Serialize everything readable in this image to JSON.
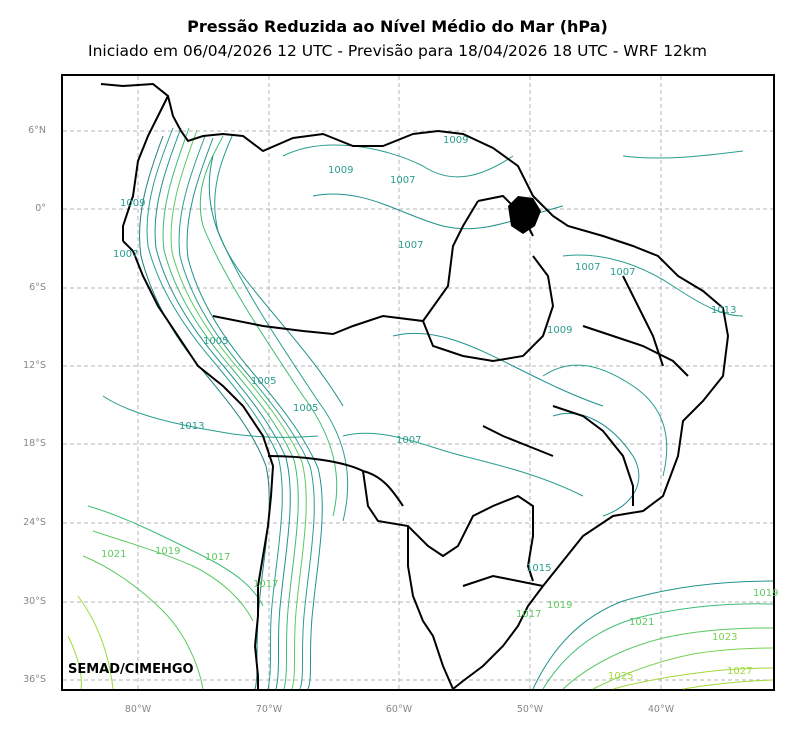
{
  "header": {
    "title": "Pressão Reduzida ao Nível Médio do Mar (hPa)",
    "subtitle": "Iniciado em 06/04/2026 12 UTC - Previsão para 18/04/2026 18 UTC - WRF 12km"
  },
  "credit": "SEMAD/CIMEHGO",
  "axes": {
    "lat_labels": [
      "6°N",
      "0°",
      "6°S",
      "12°S",
      "18°S",
      "24°S",
      "30°S",
      "36°S"
    ],
    "lon_labels": [
      "80°W",
      "70°W",
      "60°W",
      "50°W",
      "40°W"
    ]
  },
  "contour_labels": [
    {
      "text": "1009",
      "color": "#2a9d8f"
    },
    {
      "text": "1009",
      "color": "#2a9d8f"
    },
    {
      "text": "1007",
      "color": "#2a9d8f"
    },
    {
      "text": "1009",
      "color": "#2a9d8f"
    },
    {
      "text": "1007",
      "color": "#2a9d8f"
    },
    {
      "text": "1005",
      "color": "#2a9d8f"
    },
    {
      "text": "1005",
      "color": "#2a9d8f"
    },
    {
      "text": "1005",
      "color": "#2a9d8f"
    },
    {
      "text": "1013",
      "color": "#2a9d8f"
    },
    {
      "text": "1007",
      "color": "#2a9d8f"
    },
    {
      "text": "1007",
      "color": "#2a9d8f"
    },
    {
      "text": "1007",
      "color": "#2a9d8f"
    },
    {
      "text": "1009",
      "color": "#2a9d8f"
    },
    {
      "text": "1013",
      "color": "#2a9d8f"
    },
    {
      "text": "1007",
      "color": "#2a9d8f"
    },
    {
      "text": "1021",
      "color": "#5ec962"
    },
    {
      "text": "1019",
      "color": "#5ec962"
    },
    {
      "text": "1017",
      "color": "#5ec962"
    },
    {
      "text": "1015",
      "color": "#2a9d8f"
    },
    {
      "text": "1019",
      "color": "#5ec962"
    },
    {
      "text": "1017",
      "color": "#5ec962"
    },
    {
      "text": "1021",
      "color": "#5ec962"
    },
    {
      "text": "1023",
      "color": "#7ad151"
    },
    {
      "text": "1025",
      "color": "#a0da39"
    },
    {
      "text": "1027",
      "color": "#a0da39"
    },
    {
      "text": "1019",
      "color": "#5ec962"
    },
    {
      "text": "1017",
      "color": "#5ec962"
    }
  ]
}
